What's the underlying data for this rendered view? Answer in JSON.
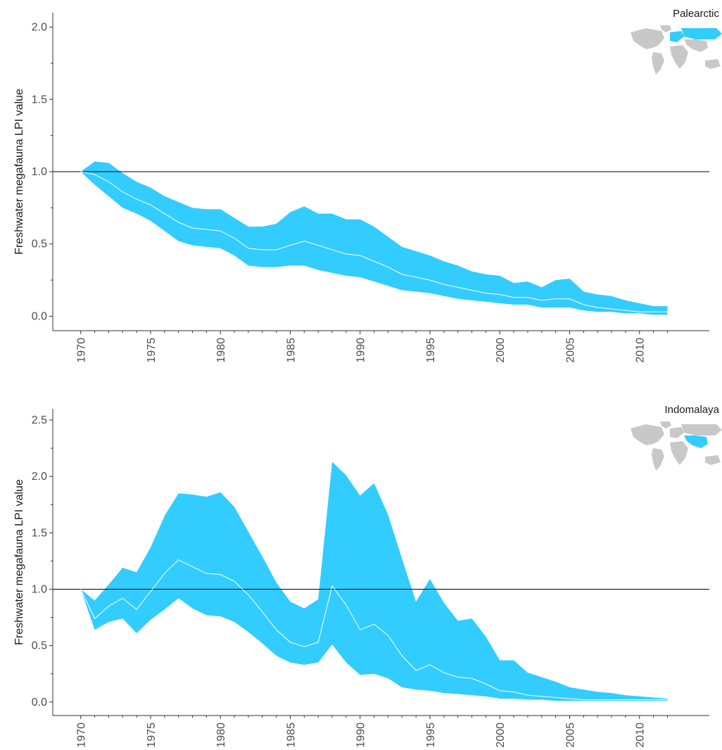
{
  "colors": {
    "ribbon": "#33ccff",
    "mean_line": "#ffffff",
    "reference_line": "#000000",
    "map_land": "#c8c8c8",
    "map_highlight": "#33ccff"
  },
  "chart_data": [
    {
      "type": "area",
      "title": "Palearctic",
      "map_icon": "world-map-icon",
      "map_highlight_region": "Palearctic",
      "ylabel": "Freshwater megafauna LPI value",
      "xlabel": "",
      "xlim": [
        1968,
        2015
      ],
      "ylim": [
        -0.1,
        2.1
      ],
      "x_ticks": [
        1970,
        1975,
        1980,
        1985,
        1990,
        1995,
        2000,
        2005,
        2010
      ],
      "y_ticks": [
        0.0,
        0.5,
        1.0,
        1.5,
        2.0
      ],
      "y_tick_labels": [
        "0.0",
        "0.5",
        "1.0",
        "1.5",
        "2.0"
      ],
      "reference_line": 1.0,
      "grid": false,
      "x": [
        1970,
        1971,
        1972,
        1973,
        1974,
        1975,
        1976,
        1977,
        1978,
        1979,
        1980,
        1981,
        1982,
        1983,
        1984,
        1985,
        1986,
        1987,
        1988,
        1989,
        1990,
        1991,
        1992,
        1993,
        1994,
        1995,
        1996,
        1997,
        1998,
        1999,
        2000,
        2001,
        2002,
        2003,
        2004,
        2005,
        2006,
        2007,
        2008,
        2009,
        2010,
        2011,
        2012
      ],
      "series": [
        {
          "role": "mean",
          "values": [
            1.0,
            0.98,
            0.93,
            0.86,
            0.81,
            0.77,
            0.71,
            0.65,
            0.61,
            0.6,
            0.59,
            0.54,
            0.47,
            0.46,
            0.46,
            0.49,
            0.52,
            0.49,
            0.46,
            0.43,
            0.42,
            0.38,
            0.34,
            0.29,
            0.27,
            0.25,
            0.22,
            0.2,
            0.18,
            0.16,
            0.15,
            0.13,
            0.13,
            0.11,
            0.12,
            0.12,
            0.08,
            0.06,
            0.05,
            0.04,
            0.03,
            0.03,
            0.03
          ]
        },
        {
          "role": "lower",
          "values": [
            1.0,
            0.91,
            0.83,
            0.75,
            0.71,
            0.66,
            0.59,
            0.52,
            0.49,
            0.48,
            0.47,
            0.42,
            0.35,
            0.34,
            0.34,
            0.35,
            0.35,
            0.32,
            0.3,
            0.28,
            0.27,
            0.24,
            0.21,
            0.18,
            0.17,
            0.16,
            0.14,
            0.12,
            0.11,
            0.1,
            0.09,
            0.08,
            0.08,
            0.06,
            0.06,
            0.06,
            0.04,
            0.03,
            0.03,
            0.02,
            0.02,
            0.01,
            0.01
          ]
        },
        {
          "role": "upper",
          "values": [
            1.0,
            1.07,
            1.06,
            0.99,
            0.93,
            0.89,
            0.83,
            0.79,
            0.75,
            0.74,
            0.74,
            0.68,
            0.62,
            0.62,
            0.64,
            0.72,
            0.76,
            0.71,
            0.71,
            0.67,
            0.67,
            0.62,
            0.55,
            0.48,
            0.45,
            0.42,
            0.38,
            0.35,
            0.31,
            0.29,
            0.28,
            0.23,
            0.24,
            0.2,
            0.25,
            0.26,
            0.17,
            0.15,
            0.14,
            0.11,
            0.09,
            0.07,
            0.07
          ]
        }
      ]
    },
    {
      "type": "area",
      "title": "Indomalaya",
      "map_icon": "world-map-icon",
      "map_highlight_region": "Indomalaya",
      "ylabel": "Freshwater megafauna LPI value",
      "xlabel": "",
      "xlim": [
        1968,
        2015
      ],
      "ylim": [
        -0.12,
        2.6
      ],
      "x_ticks": [
        1970,
        1975,
        1980,
        1985,
        1990,
        1995,
        2000,
        2005,
        2010
      ],
      "y_ticks": [
        0.0,
        0.5,
        1.0,
        1.5,
        2.0,
        2.5
      ],
      "y_tick_labels": [
        "0.0",
        "0.5",
        "1.0",
        "1.5",
        "2.0",
        "2.5"
      ],
      "reference_line": 1.0,
      "grid": false,
      "x": [
        1970,
        1971,
        1972,
        1973,
        1974,
        1975,
        1976,
        1977,
        1978,
        1979,
        1980,
        1981,
        1982,
        1983,
        1984,
        1985,
        1986,
        1987,
        1988,
        1989,
        1990,
        1991,
        1992,
        1993,
        1994,
        1995,
        1996,
        1997,
        1998,
        1999,
        2000,
        2001,
        2002,
        2003,
        2004,
        2005,
        2006,
        2007,
        2008,
        2009,
        2010,
        2011,
        2012
      ],
      "series": [
        {
          "role": "mean",
          "values": [
            1.0,
            0.74,
            0.85,
            0.92,
            0.82,
            0.98,
            1.14,
            1.26,
            1.2,
            1.14,
            1.13,
            1.07,
            0.95,
            0.8,
            0.64,
            0.53,
            0.49,
            0.53,
            1.03,
            0.86,
            0.64,
            0.69,
            0.59,
            0.41,
            0.28,
            0.33,
            0.26,
            0.22,
            0.21,
            0.16,
            0.1,
            0.09,
            0.06,
            0.05,
            0.04,
            0.03,
            0.02,
            0.02,
            0.02,
            0.02,
            0.02,
            0.02,
            0.02
          ]
        },
        {
          "role": "lower",
          "values": [
            1.0,
            0.64,
            0.71,
            0.74,
            0.61,
            0.73,
            0.82,
            0.92,
            0.83,
            0.77,
            0.76,
            0.71,
            0.62,
            0.52,
            0.41,
            0.35,
            0.33,
            0.35,
            0.51,
            0.35,
            0.24,
            0.25,
            0.21,
            0.13,
            0.11,
            0.1,
            0.08,
            0.07,
            0.06,
            0.05,
            0.03,
            0.03,
            0.02,
            0.02,
            0.01,
            0.01,
            0.01,
            0.01,
            0.01,
            0.01,
            0.01,
            0.01,
            0.01
          ]
        },
        {
          "role": "upper",
          "values": [
            1.0,
            0.9,
            1.04,
            1.19,
            1.15,
            1.37,
            1.65,
            1.85,
            1.84,
            1.82,
            1.86,
            1.73,
            1.51,
            1.29,
            1.06,
            0.89,
            0.83,
            0.91,
            2.13,
            2.01,
            1.83,
            1.94,
            1.66,
            1.27,
            0.89,
            1.09,
            0.88,
            0.72,
            0.74,
            0.58,
            0.37,
            0.37,
            0.26,
            0.22,
            0.18,
            0.13,
            0.11,
            0.09,
            0.08,
            0.06,
            0.05,
            0.04,
            0.03
          ]
        }
      ]
    }
  ]
}
